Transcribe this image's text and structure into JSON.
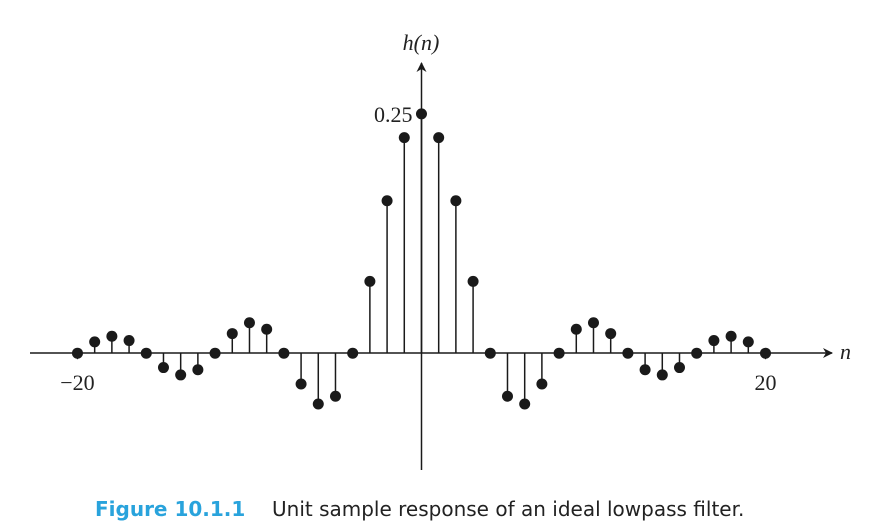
{
  "chart_data": {
    "type": "stem",
    "y_label": "h(n)",
    "x_label": "n",
    "caption_label": "Figure 10.1.1",
    "caption": "Unit sample response of an ideal lowpass filter.",
    "color": "#1a1a1a",
    "x": [
      -20,
      -19,
      -18,
      -17,
      -16,
      -15,
      -14,
      -13,
      -12,
      -11,
      -10,
      -9,
      -8,
      -7,
      -6,
      -5,
      -4,
      -3,
      -2,
      -1,
      0,
      1,
      2,
      3,
      4,
      5,
      6,
      7,
      8,
      9,
      10,
      11,
      12,
      13,
      14,
      15,
      16,
      17,
      18,
      19,
      20
    ],
    "values": [
      0,
      0.0118,
      0.0177,
      0.0132,
      0,
      -0.015,
      -0.0227,
      -0.0173,
      0,
      0.0205,
      0.0318,
      0.025,
      0,
      -0.0322,
      -0.0531,
      -0.045,
      0,
      0.075,
      0.1592,
      0.2251,
      0.25,
      0.2251,
      0.1592,
      0.075,
      0,
      -0.045,
      -0.0531,
      -0.0322,
      0,
      0.025,
      0.0318,
      0.0205,
      0,
      -0.0173,
      -0.0227,
      -0.015,
      0,
      0.0132,
      0.0177,
      0.0118,
      0
    ],
    "xlim": [
      -22.76,
      23.75
    ],
    "ylim": [
      -0.122,
      0.301
    ],
    "xticks": [
      {
        "value": -20,
        "label": "−20"
      },
      20
    ],
    "yticks": [
      0.25
    ]
  }
}
